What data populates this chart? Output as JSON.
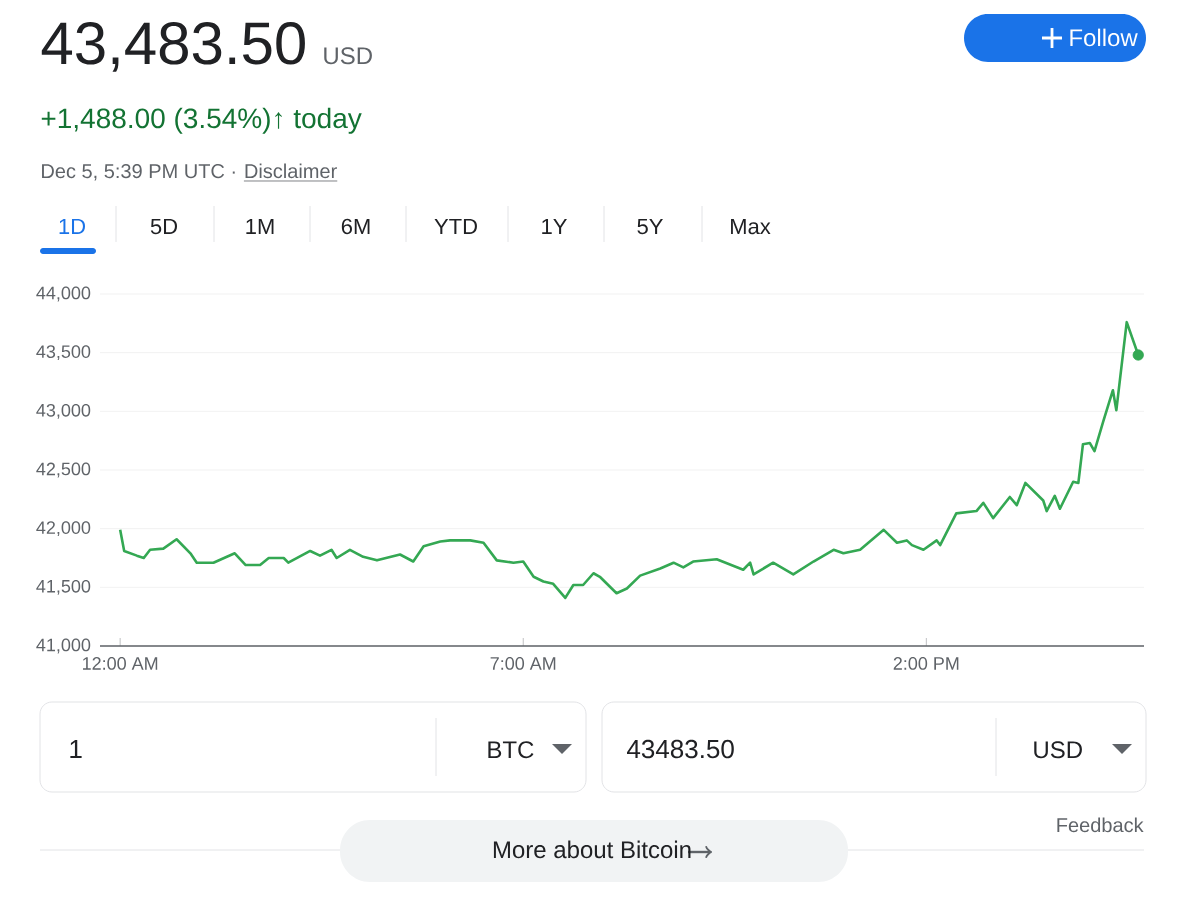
{
  "chart_data": {
    "type": "line",
    "title": "43,483.50",
    "subtitle": "+1,488.00 (3.54%)↑ today",
    "annotations": [
      "USD",
      "Follow",
      "Dec 5, 5:39 PM UTC ·",
      "Disclaimer",
      "1D",
      "5D",
      "1M",
      "6M",
      "YTD",
      "1Y",
      "5Y",
      "Max",
      "1",
      "BTC",
      "43483.50",
      "USD",
      "Feedback",
      "More about Bitcoin"
    ],
    "x": [
      0,
      0.07,
      0.29,
      0.41,
      0.52,
      0.75,
      0.98,
      1.22,
      1.33,
      1.62,
      1.99,
      2.18,
      2.43,
      2.58,
      2.84,
      2.92,
      3.3,
      3.47,
      3.67,
      3.76,
      3.99,
      4.22,
      4.46,
      4.86,
      5.09,
      5.27,
      5.56,
      5.73,
      6.08,
      6.31,
      6.54,
      6.83,
      7.0,
      7.18,
      7.35,
      7.52,
      7.73,
      7.87,
      8.04,
      8.22,
      8.33,
      8.62,
      8.8,
      9.03,
      9.38,
      9.61,
      9.78,
      9.95,
      10.36,
      10.82,
      10.94,
      11.0,
      11.34,
      11.69,
      12.04,
      12.39,
      12.56,
      12.85,
      13.26,
      13.49,
      13.66,
      13.75,
      13.95,
      14.18,
      14.24,
      14.52,
      14.87,
      14.99,
      15.16,
      15.45,
      15.57,
      15.72,
      16.03,
      16.09,
      16.23,
      16.32,
      16.55,
      16.64,
      16.72,
      16.84,
      16.92,
      17.07,
      17.24,
      17.3,
      17.48,
      17.68
    ],
    "values": [
      41990,
      41810,
      41770,
      41750,
      41820,
      41830,
      41910,
      41790,
      41710,
      41710,
      41790,
      41690,
      41690,
      41750,
      41750,
      41710,
      41810,
      41770,
      41820,
      41750,
      41820,
      41760,
      41730,
      41780,
      41720,
      41850,
      41890,
      41900,
      41900,
      41880,
      41730,
      41710,
      41720,
      41590,
      41550,
      41530,
      41410,
      41520,
      41520,
      41620,
      41590,
      41450,
      41490,
      41600,
      41660,
      41710,
      41670,
      41720,
      41740,
      41650,
      41710,
      41610,
      41710,
      41610,
      41720,
      41820,
      41790,
      41820,
      41990,
      41880,
      41900,
      41860,
      41820,
      41900,
      41860,
      42130,
      42150,
      42220,
      42090,
      42270,
      42200,
      42390,
      42240,
      42150,
      42280,
      42170,
      42400,
      42390,
      42720,
      42730,
      42660,
      42910,
      43180,
      43010,
      43760,
      43480
    ],
    "color": "#34a853",
    "xlim": [
      -0.35,
      17.78
    ],
    "ylim": [
      41000,
      44000
    ],
    "xticks": [
      {
        "value": 0,
        "label": "12:00 AM"
      },
      {
        "value": 7,
        "label": "7:00 AM"
      },
      {
        "value": 14,
        "label": "2:00 PM"
      }
    ],
    "yticks": [
      {
        "value": 41000,
        "label": "41,000"
      },
      {
        "value": 41500,
        "label": "41,500"
      },
      {
        "value": 42000,
        "label": "42,000"
      },
      {
        "value": 42500,
        "label": "42,500"
      },
      {
        "value": 43000,
        "label": "43,000"
      },
      {
        "value": 43500,
        "label": "43,500"
      },
      {
        "value": 44000,
        "label": "44,000"
      }
    ],
    "grid": "y"
  }
}
